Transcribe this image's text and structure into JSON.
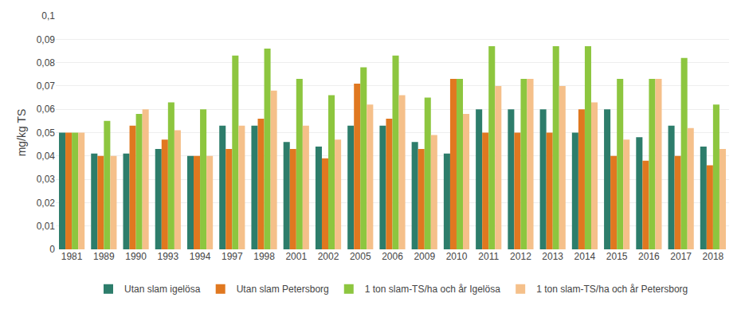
{
  "chart_data": {
    "type": "bar",
    "ylabel": "mg/kg TS",
    "categories": [
      "1981",
      "1989",
      "1990",
      "1993",
      "1994",
      "1997",
      "1998",
      "2001",
      "2002",
      "2005",
      "2006",
      "2009",
      "2010",
      "2011",
      "2012",
      "2013",
      "2014",
      "2015",
      "2016",
      "2017",
      "2018"
    ],
    "series": [
      {
        "name": "Utan slam igelösa",
        "color": "#2d7d6b",
        "values": [
          0.05,
          0.041,
          0.041,
          0.043,
          0.04,
          0.053,
          0.053,
          0.046,
          0.044,
          0.053,
          0.053,
          0.046,
          0.041,
          0.06,
          0.06,
          0.06,
          0.05,
          0.06,
          0.048,
          0.053,
          0.044
        ]
      },
      {
        "name": "Utan slam Petersborg",
        "color": "#e07820",
        "values": [
          0.05,
          0.04,
          0.053,
          0.047,
          0.04,
          0.043,
          0.056,
          0.043,
          0.039,
          0.071,
          0.056,
          0.043,
          0.073,
          0.05,
          0.05,
          0.05,
          0.06,
          0.04,
          0.038,
          0.04,
          0.036
        ]
      },
      {
        "name": "1 ton slam-TS/ha och år Igelösa",
        "color": "#8dc63f",
        "values": [
          0.05,
          0.055,
          0.058,
          0.063,
          0.06,
          0.083,
          0.086,
          0.073,
          0.066,
          0.078,
          0.083,
          0.065,
          0.073,
          0.087,
          0.073,
          0.087,
          0.087,
          0.073,
          0.073,
          0.082,
          0.062
        ]
      },
      {
        "name": "1 ton slam-TS/ha och år Petersborg",
        "color": "#f5c08a",
        "values": [
          0.05,
          0.04,
          0.06,
          0.051,
          0.04,
          0.053,
          0.068,
          0.053,
          0.047,
          0.062,
          0.066,
          0.049,
          0.058,
          0.07,
          0.073,
          0.07,
          0.063,
          0.047,
          0.073,
          0.052,
          0.043
        ]
      }
    ],
    "ylim": [
      0,
      0.1
    ],
    "yticks": [
      0,
      {
        "value": 0.01,
        "label": "0,01"
      },
      {
        "value": 0.02,
        "label": "0,02"
      },
      {
        "value": 0.03,
        "label": "0,03"
      },
      {
        "value": 0.04,
        "label": "0,04"
      },
      {
        "value": 0.05,
        "label": "0,05"
      },
      {
        "value": 0.06,
        "label": "0,06"
      },
      {
        "value": 0.07,
        "label": "0,07"
      },
      {
        "value": 0.08,
        "label": "0,08"
      },
      {
        "value": 0.09,
        "label": "0,09"
      },
      {
        "value": 0.1,
        "label": "0,1"
      }
    ],
    "grid": true,
    "legend": "bottom"
  }
}
